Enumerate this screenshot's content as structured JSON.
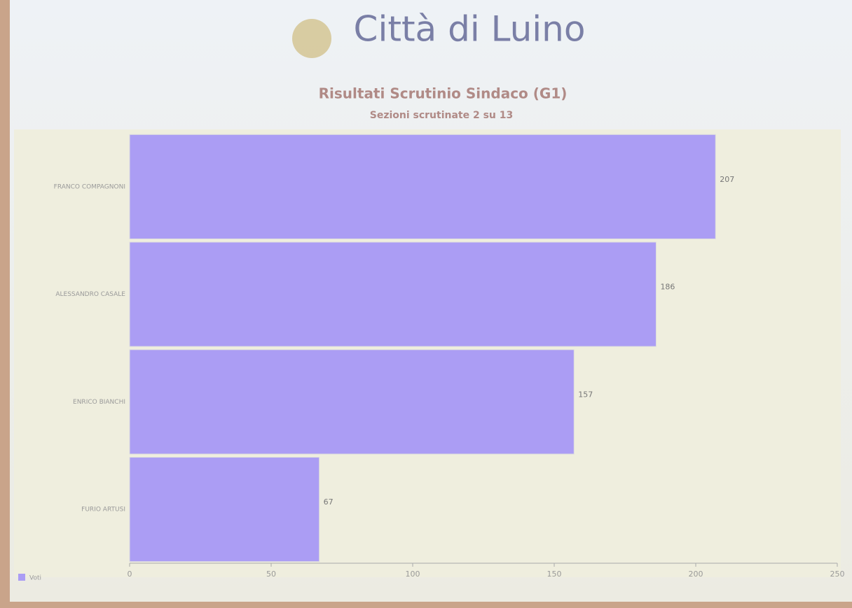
{
  "header": {
    "title": "Città di Luino"
  },
  "chart_data": {
    "type": "hbar",
    "title": "Risultati Scrutinio Sindaco (G1)",
    "subtitle": "Sezioni scrutinate 2 su 13",
    "categories": [
      "FRANCO COMPAGNONI",
      "ALESSANDRO CASALE",
      "ENRICO BIANCHI",
      "FURIO ARTUSI"
    ],
    "series": [
      {
        "name": "Voti",
        "color": "#ab9df4",
        "values": [
          207,
          186,
          157,
          67
        ]
      }
    ],
    "xlim": [
      0,
      250
    ],
    "xticks": [
      0,
      50,
      100,
      150,
      200,
      250
    ],
    "legend": "bottom-left"
  }
}
